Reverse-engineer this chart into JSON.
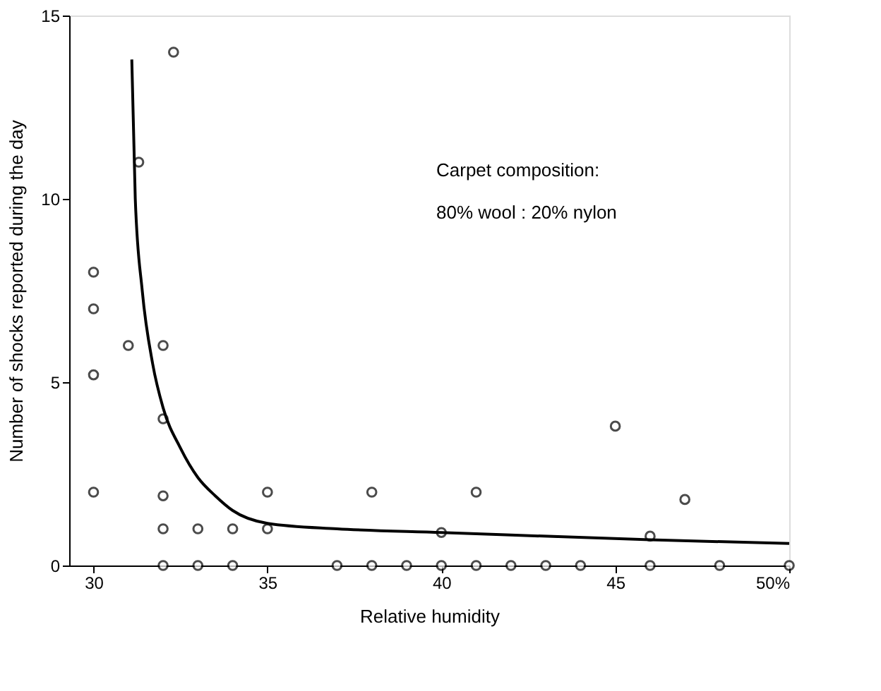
{
  "chart_data": {
    "type": "scatter",
    "xlabel": "Relative humidity",
    "ylabel": "Number of shocks reported during the day",
    "xlim": [
      29.3,
      50
    ],
    "xticks": [
      30,
      35,
      40,
      45,
      {
        "value": 50,
        "label": "50%"
      }
    ],
    "ylim": [
      0,
      15
    ],
    "yticks": [
      0,
      5,
      10,
      15
    ],
    "grid": false,
    "marker": "circle",
    "annotations": [
      "Carpet composition:",
      "80% wool : 20% nylon"
    ],
    "series": [
      {
        "type": "scatter",
        "color": "#000000",
        "x": [
          30,
          30,
          30,
          30,
          31,
          31.3,
          32,
          32,
          32.3,
          32,
          32,
          33,
          34,
          35,
          35,
          38,
          40,
          41,
          45,
          46,
          47,
          32,
          33,
          34,
          37,
          38,
          39,
          40,
          41,
          42,
          43,
          44,
          46,
          48,
          50
        ],
        "values": [
          8,
          7,
          5.2,
          2,
          6,
          11,
          6,
          4,
          14,
          1.9,
          1,
          1,
          1,
          1,
          2,
          2,
          0.9,
          2,
          3.8,
          0.8,
          1.8,
          0,
          0,
          0,
          0,
          0,
          0,
          0,
          0,
          0,
          0,
          0,
          0,
          0,
          0
        ]
      },
      {
        "type": "line",
        "color": "#000000",
        "marker": "none",
        "x": [
          31.1,
          31.2,
          31.4,
          31.7,
          32,
          32.5,
          33,
          33.5,
          34,
          35,
          37,
          40,
          46,
          50
        ],
        "values": [
          13.8,
          10,
          7.5,
          5.5,
          4.3,
          3.2,
          2.4,
          1.9,
          1.5,
          1.15,
          1.0,
          0.9,
          0.7,
          0.6
        ]
      }
    ]
  }
}
